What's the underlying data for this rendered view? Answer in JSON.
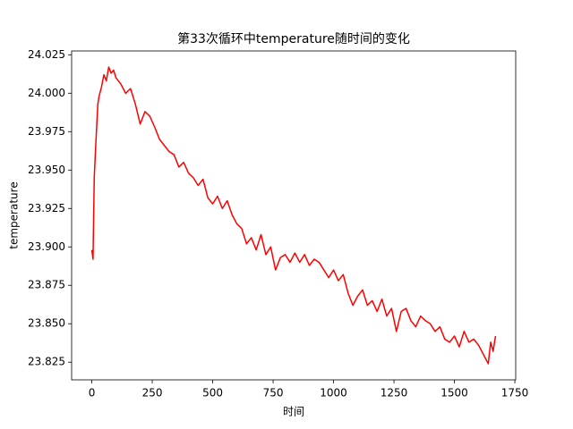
{
  "chart_data": {
    "type": "line",
    "title": "第33次循环中temperature随时间的变化",
    "x_label": "时间",
    "y_label": "temperature",
    "x": [
      0,
      5,
      10,
      15,
      20,
      25,
      30,
      40,
      50,
      60,
      70,
      80,
      90,
      100,
      120,
      140,
      160,
      180,
      200,
      220,
      240,
      260,
      280,
      300,
      320,
      340,
      360,
      380,
      400,
      420,
      440,
      460,
      480,
      500,
      520,
      540,
      560,
      580,
      600,
      620,
      640,
      660,
      680,
      700,
      720,
      740,
      760,
      780,
      800,
      820,
      840,
      860,
      880,
      900,
      920,
      940,
      960,
      980,
      1000,
      1020,
      1040,
      1060,
      1080,
      1100,
      1120,
      1140,
      1160,
      1180,
      1200,
      1220,
      1240,
      1260,
      1280,
      1300,
      1320,
      1340,
      1360,
      1380,
      1400,
      1420,
      1440,
      1460,
      1480,
      1500,
      1520,
      1540,
      1560,
      1580,
      1600,
      1620,
      1640,
      1650,
      1660,
      1670
    ],
    "series": [
      {
        "name": "temperature",
        "color": "#ff0000",
        "values": [
          23.898,
          23.892,
          23.945,
          23.962,
          23.978,
          23.993,
          23.998,
          24.004,
          24.012,
          24.008,
          24.017,
          24.013,
          24.015,
          24.01,
          24.006,
          24.0,
          24.003,
          23.993,
          23.98,
          23.988,
          23.985,
          23.978,
          23.97,
          23.966,
          23.962,
          23.96,
          23.952,
          23.955,
          23.948,
          23.945,
          23.94,
          23.944,
          23.932,
          23.928,
          23.933,
          23.925,
          23.93,
          23.921,
          23.915,
          23.912,
          23.902,
          23.906,
          23.898,
          23.908,
          23.895,
          23.9,
          23.885,
          23.893,
          23.895,
          23.89,
          23.896,
          23.89,
          23.895,
          23.888,
          23.892,
          23.89,
          23.885,
          23.88,
          23.885,
          23.878,
          23.882,
          23.87,
          23.862,
          23.868,
          23.872,
          23.862,
          23.865,
          23.858,
          23.866,
          23.855,
          23.86,
          23.845,
          23.858,
          23.86,
          23.852,
          23.848,
          23.855,
          23.852,
          23.85,
          23.845,
          23.848,
          23.84,
          23.838,
          23.842,
          23.835,
          23.845,
          23.838,
          23.84,
          23.836,
          23.83,
          23.824,
          23.838,
          23.832,
          23.842
        ]
      }
    ],
    "xlim": [
      -83.5,
      1753.5
    ],
    "ylim": [
      23.8135,
      24.0275
    ],
    "xticks": [
      0,
      250,
      500,
      750,
      1000,
      1250,
      1500,
      1750
    ],
    "yticks": [
      23.825,
      {
        "value": 23.85,
        "label": "23.850"
      },
      23.875,
      {
        "value": 23.9,
        "label": "23.900"
      },
      23.925,
      {
        "value": 23.95,
        "label": "23.950"
      },
      23.975,
      {
        "value": 24.0,
        "label": "24.000"
      },
      24.025
    ]
  }
}
